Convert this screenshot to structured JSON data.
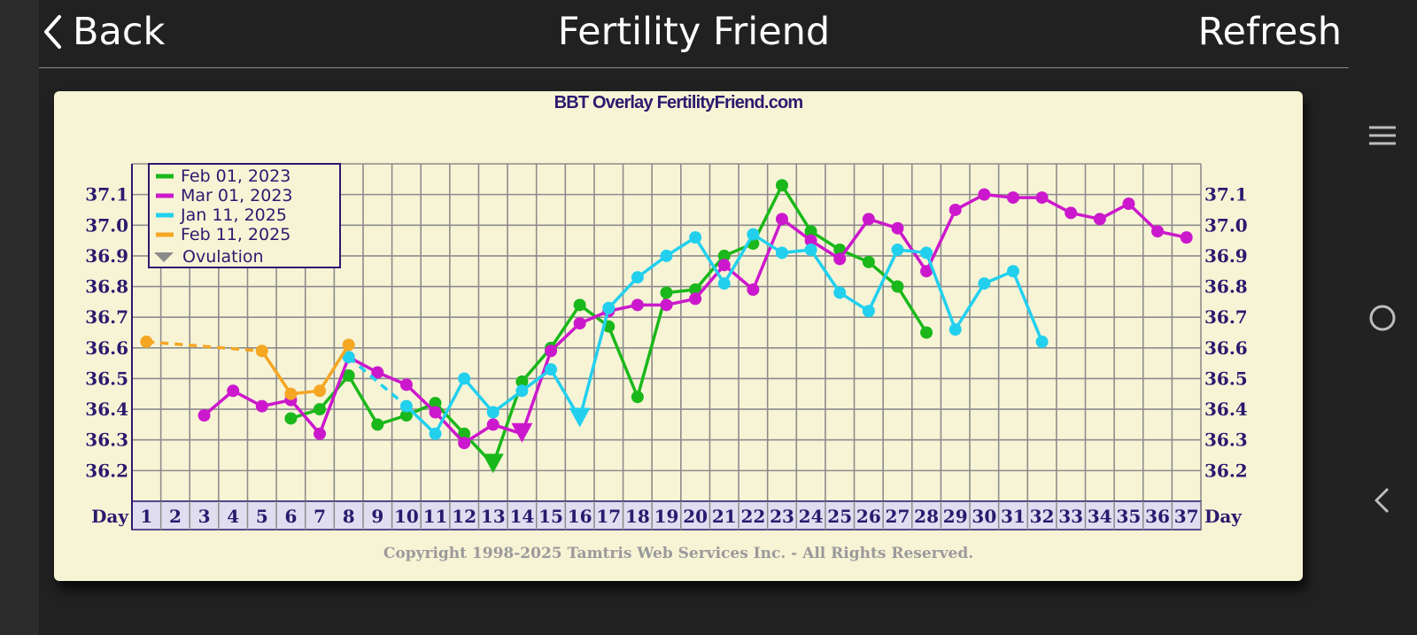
{
  "header": {
    "back_label": "Back",
    "title": "Fertility Friend",
    "refresh_label": "Refresh"
  },
  "chart_data": {
    "type": "line",
    "title": "BBT Overlay FertilityFriend.com",
    "x_axis_label": "Day",
    "x": [
      1,
      2,
      3,
      4,
      5,
      6,
      7,
      8,
      9,
      10,
      11,
      12,
      13,
      14,
      15,
      16,
      17,
      18,
      19,
      20,
      21,
      22,
      23,
      24,
      25,
      26,
      27,
      28,
      29,
      30,
      31,
      32,
      33,
      34,
      35,
      36,
      37
    ],
    "xlim": [
      1,
      37
    ],
    "y_ticks": [
      "37.1",
      "37.0",
      "36.9",
      "36.8",
      "36.7",
      "36.6",
      "36.5",
      "36.4",
      "36.3",
      "36.2"
    ],
    "ylim": [
      36.1,
      37.2
    ],
    "grid": true,
    "legend_position": "top-left",
    "ovulation_label": "Ovulation",
    "copyright": "Copyright 1998-2025 Tamtris Web Services Inc. - All Rights Reserved.",
    "series": [
      {
        "name": "Feb 01, 2023",
        "color": "#1ab81a",
        "ovulation_day": 13,
        "segments": [
          {
            "style": "solid",
            "points": [
              [
                6,
                36.37
              ],
              [
                7,
                36.4
              ],
              [
                8,
                36.51
              ],
              [
                9,
                36.35
              ],
              [
                10,
                36.38
              ],
              [
                11,
                36.42
              ],
              [
                12,
                36.32
              ],
              [
                13,
                36.22
              ],
              [
                14,
                36.49
              ],
              [
                15,
                36.6
              ],
              [
                16,
                36.74
              ],
              [
                17,
                36.67
              ],
              [
                18,
                36.44
              ],
              [
                19,
                36.78
              ],
              [
                20,
                36.79
              ],
              [
                21,
                36.9
              ],
              [
                22,
                36.94
              ],
              [
                23,
                37.13
              ],
              [
                24,
                36.98
              ],
              [
                25,
                36.92
              ],
              [
                26,
                36.88
              ],
              [
                27,
                36.8
              ],
              [
                28,
                36.65
              ]
            ]
          }
        ]
      },
      {
        "name": "Mar 01, 2023",
        "color": "#cc18cc",
        "ovulation_day": 14,
        "segments": [
          {
            "style": "solid",
            "points": [
              [
                3,
                36.38
              ],
              [
                4,
                36.46
              ],
              [
                5,
                36.41
              ],
              [
                6,
                36.43
              ],
              [
                7,
                36.32
              ],
              [
                8,
                36.57
              ],
              [
                9,
                36.52
              ],
              [
                10,
                36.48
              ],
              [
                11,
                36.39
              ],
              [
                12,
                36.29
              ],
              [
                13,
                36.35
              ],
              [
                14,
                36.32
              ],
              [
                15,
                36.59
              ],
              [
                16,
                36.68
              ],
              [
                17,
                36.72
              ],
              [
                18,
                36.74
              ],
              [
                19,
                36.74
              ],
              [
                20,
                36.76
              ],
              [
                21,
                36.87
              ],
              [
                22,
                36.79
              ],
              [
                23,
                37.02
              ],
              [
                24,
                36.95
              ],
              [
                25,
                36.89
              ],
              [
                26,
                37.02
              ],
              [
                27,
                36.99
              ],
              [
                28,
                36.85
              ],
              [
                29,
                37.05
              ],
              [
                30,
                37.1
              ],
              [
                31,
                37.09
              ],
              [
                32,
                37.09
              ],
              [
                33,
                37.04
              ],
              [
                34,
                37.02
              ],
              [
                35,
                37.07
              ],
              [
                36,
                36.98
              ],
              [
                37,
                36.96
              ]
            ]
          }
        ]
      },
      {
        "name": "Jan 11, 2025",
        "color": "#22d0ee",
        "ovulation_day": 16,
        "segments": [
          {
            "style": "dashed",
            "points": [
              [
                8,
                36.57
              ],
              [
                10,
                36.41
              ]
            ]
          },
          {
            "style": "solid",
            "points": [
              [
                10,
                36.41
              ],
              [
                11,
                36.32
              ],
              [
                12,
                36.5
              ],
              [
                13,
                36.39
              ],
              [
                14,
                36.46
              ],
              [
                15,
                36.53
              ],
              [
                16,
                36.37
              ],
              [
                17,
                36.73
              ],
              [
                18,
                36.83
              ],
              [
                19,
                36.9
              ],
              [
                20,
                36.96
              ],
              [
                21,
                36.81
              ],
              [
                22,
                36.97
              ],
              [
                23,
                36.91
              ],
              [
                24,
                36.92
              ],
              [
                25,
                36.78
              ],
              [
                26,
                36.72
              ],
              [
                27,
                36.92
              ],
              [
                28,
                36.91
              ],
              [
                29,
                36.66
              ],
              [
                30,
                36.81
              ],
              [
                31,
                36.85
              ],
              [
                32,
                36.62
              ]
            ]
          }
        ]
      },
      {
        "name": "Feb 11, 2025",
        "color": "#f5a623",
        "ovulation_day": null,
        "segments": [
          {
            "style": "dashed",
            "points": [
              [
                1,
                36.62
              ],
              [
                5,
                36.59
              ]
            ]
          },
          {
            "style": "solid",
            "points": [
              [
                5,
                36.59
              ],
              [
                6,
                36.45
              ],
              [
                7,
                36.46
              ],
              [
                8,
                36.61
              ]
            ]
          }
        ]
      }
    ]
  }
}
